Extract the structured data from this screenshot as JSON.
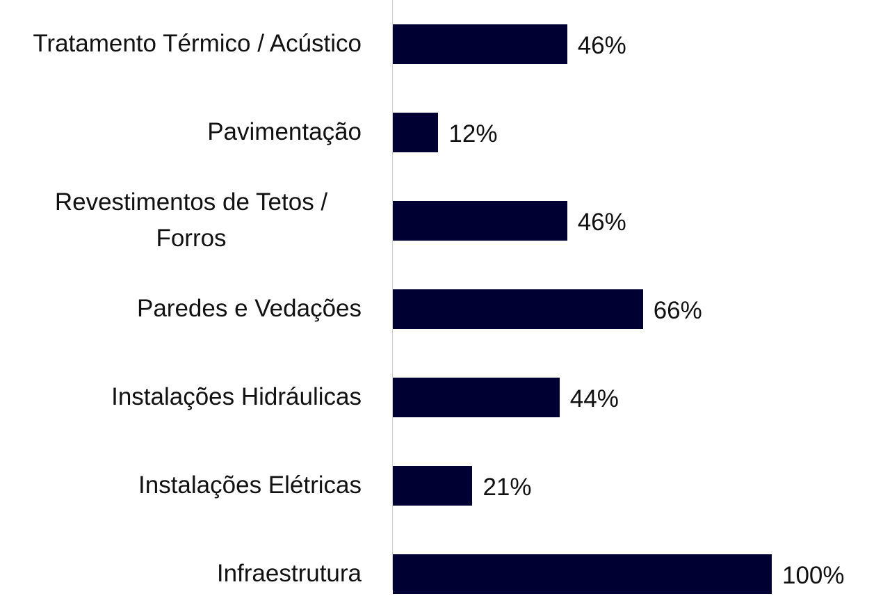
{
  "chart_data": {
    "type": "barh",
    "categories": [
      "Tratamento Térmico / Acústico",
      "Pavimentação",
      "Revestimentos de Tetos / Forros",
      "Paredes e Vedações",
      "Instalações Hidráulicas",
      "Instalações Elétricas",
      "Infraestrutura"
    ],
    "values": [
      46,
      12,
      46,
      66,
      44,
      21,
      100
    ],
    "value_labels": [
      "46%",
      "12%",
      "46%",
      "66%",
      "44%",
      "21%",
      "100%"
    ],
    "color": "#000033",
    "xlim": [
      0,
      100
    ]
  }
}
